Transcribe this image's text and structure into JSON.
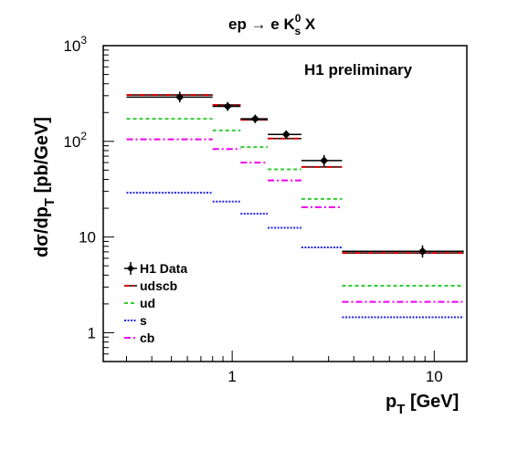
{
  "chart_data": {
    "type": "step-histogram",
    "title": "ep → e K",
    "title_sup": "0",
    "title_sub": "s",
    "title_tail": " X",
    "annotation": "H1 preliminary",
    "xlabel": "p",
    "xlabel_sub": "T",
    "xlabel_tail": " [GeV]",
    "ylabel": "dσ/dp",
    "ylabel_sub": "T",
    "ylabel_tail": " [pb/GeV]",
    "xscale": "log",
    "yscale": "log",
    "xlim": [
      0.23,
      14.5
    ],
    "ylim": [
      0.5,
      1000
    ],
    "x_ticks": [
      {
        "value": 1,
        "label": "1"
      },
      {
        "value": 10,
        "label": "10"
      }
    ],
    "y_ticks": [
      {
        "value": 1,
        "base": "1",
        "exp": ""
      },
      {
        "value": 10,
        "base": "10",
        "exp": ""
      },
      {
        "value": 100,
        "base": "10",
        "exp": "2"
      },
      {
        "value": 1000,
        "base": "10",
        "exp": "3"
      }
    ],
    "bin_edges": [
      0.3,
      0.8,
      1.1,
      1.5,
      2.2,
      3.5,
      14
    ],
    "data_points": {
      "name": "H1 Data",
      "color": "#000000",
      "points": [
        {
          "x": 0.55,
          "y": 290,
          "err_low": 255,
          "err_high": 330
        },
        {
          "x": 0.95,
          "y": 232,
          "err_low": 208,
          "err_high": 258
        },
        {
          "x": 1.3,
          "y": 172,
          "err_low": 155,
          "err_high": 190
        },
        {
          "x": 1.85,
          "y": 118,
          "err_low": 106,
          "err_high": 130
        },
        {
          "x": 2.85,
          "y": 63,
          "err_low": 55,
          "err_high": 72
        },
        {
          "x": 8.75,
          "y": 7.1,
          "err_low": 6.1,
          "err_high": 8.2
        }
      ]
    },
    "series": [
      {
        "name": "udscb",
        "color": "#dd0000",
        "color2": "#000000",
        "dash": "6,3,2,3",
        "values": [
          305,
          240,
          168,
          107,
          54,
          6.8
        ]
      },
      {
        "name": "ud",
        "color": "#33cc33",
        "dash": "4,3",
        "values": [
          172,
          130,
          87,
          51,
          25,
          3.1
        ]
      },
      {
        "name": "s",
        "color": "#2222ee",
        "dash": "2,1.5",
        "values": [
          29,
          23.5,
          17.5,
          12.5,
          7.8,
          1.45
        ]
      },
      {
        "name": "cb",
        "color": "#ee00ee",
        "dash": "7,3,2,3",
        "values": [
          105,
          83,
          60,
          39,
          20.5,
          2.1
        ]
      }
    ],
    "legend_position": "bottom-left",
    "grid": false
  }
}
